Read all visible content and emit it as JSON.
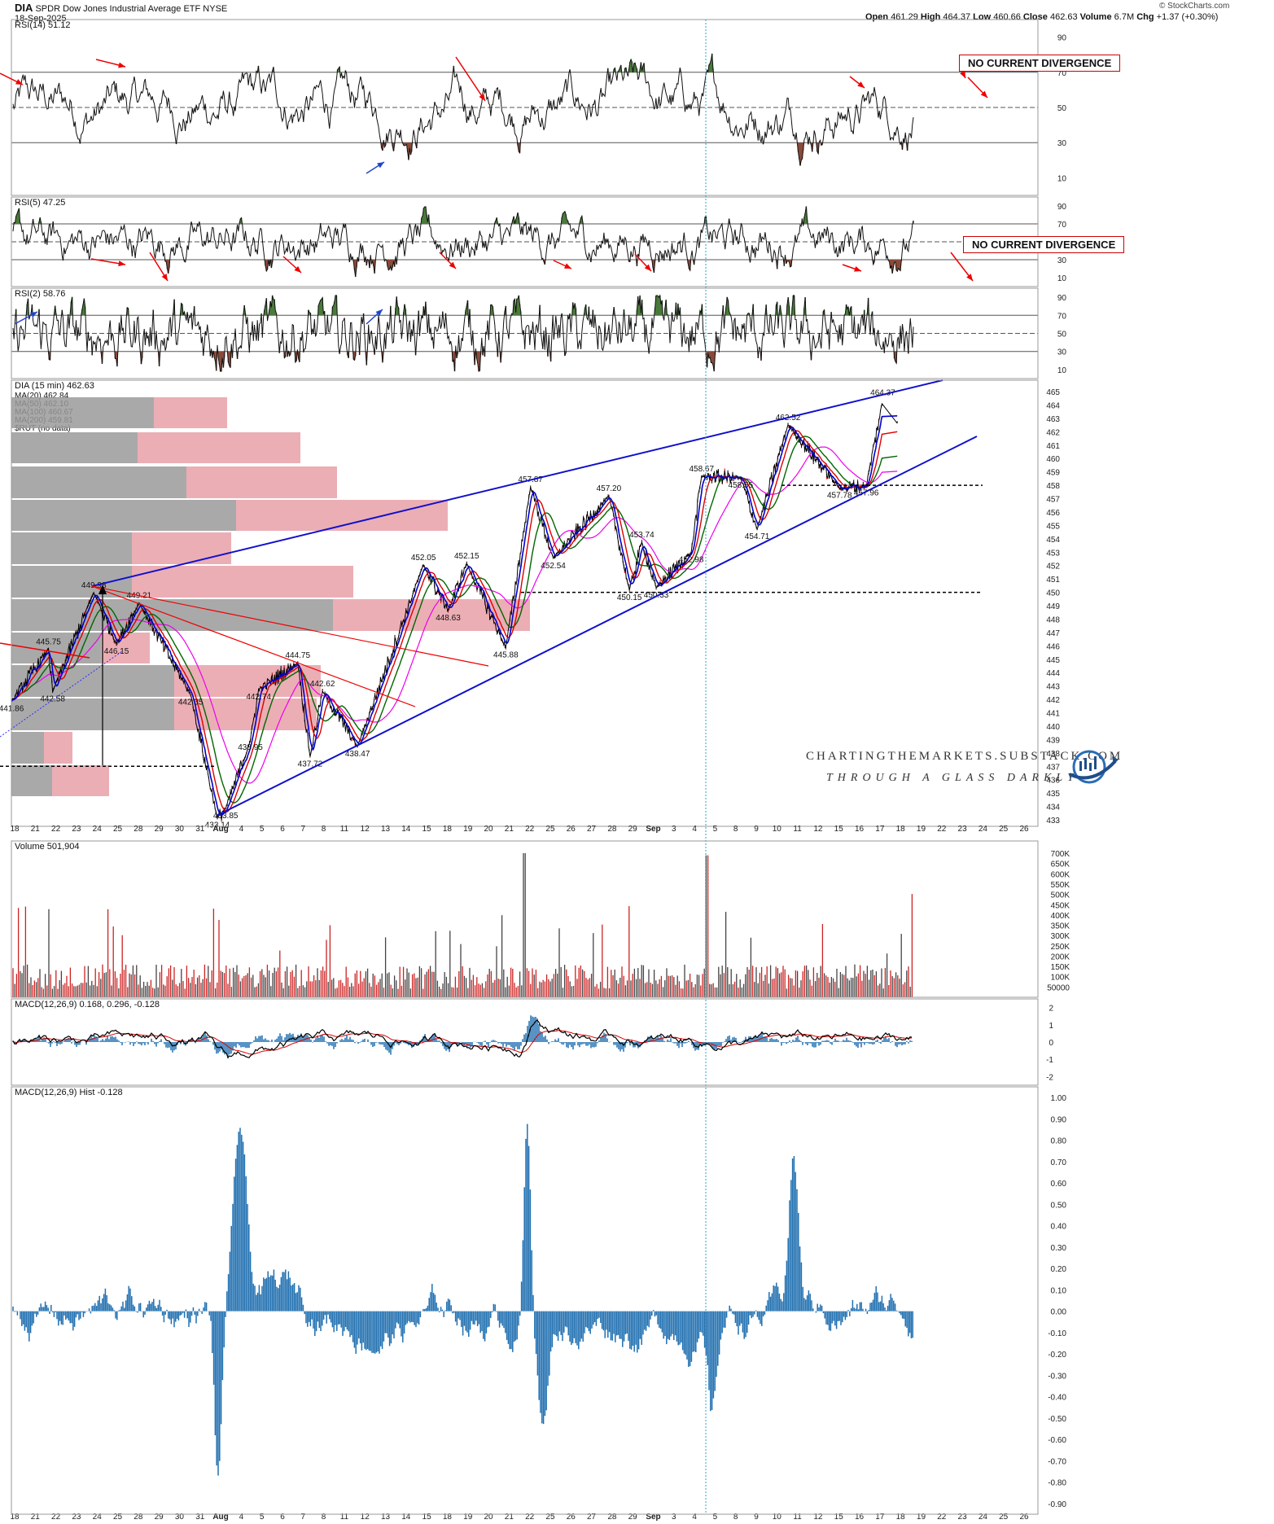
{
  "header": {
    "symbol": "DIA",
    "name": "SPDR Dow Jones Industrial Average ETF",
    "exchange": "NYSE",
    "date": "18-Sep-2025",
    "open_label": "Open",
    "open": "461.29",
    "high_label": "High",
    "high": "464.37",
    "low_label": "Low",
    "low": "460.66",
    "close_label": "Close",
    "close": "462.63",
    "volume_label": "Volume",
    "volume": "6.7M",
    "chg_label": "Chg",
    "chg": "+1.37 (+0.30%)",
    "copyright": "© StockCharts.com"
  },
  "watermark": {
    "line1": "CHARTINGTHEMARKETS.SUBSTACK.COM",
    "line2": "THROUGH A GLASS DARKLY"
  },
  "annotations": {
    "rsi14_divergence": "NO CURRENT DIVERGENCE",
    "rsi5_divergence": "NO CURRENT DIVERGENCE"
  },
  "chart_data": [
    {
      "type": "line",
      "title": "RSI(14) 51.12",
      "y_ticks": [
        90,
        70,
        50,
        30,
        10
      ],
      "ylim": [
        0,
        100
      ],
      "guides": [
        70,
        50,
        30
      ]
    },
    {
      "type": "line",
      "title": "RSI(5) 47.25",
      "y_ticks": [
        90,
        70,
        50,
        30,
        10
      ],
      "ylim": [
        0,
        100
      ],
      "guides": [
        70,
        50,
        30
      ]
    },
    {
      "type": "line",
      "title": "RSI(2) 58.76",
      "y_ticks": [
        90,
        70,
        50,
        30,
        10
      ],
      "ylim": [
        0,
        100
      ],
      "guides": [
        70,
        50,
        30
      ]
    },
    {
      "type": "line",
      "title": "DIA (15 min) 462.63",
      "legend": [
        {
          "name": "MA(20) 462.84",
          "color": "#0000cc"
        },
        {
          "name": "MA(50) 462.10",
          "color": "#dd0000"
        },
        {
          "name": "MA(100) 460.67",
          "color": "#006600"
        },
        {
          "name": "MA(200) 459.81",
          "color": "#ee00ee"
        },
        {
          "name": "$RUT (no data)",
          "color": "#00aa00"
        }
      ],
      "y_ticks": [
        465,
        464,
        463,
        462,
        461,
        460,
        459,
        458,
        457,
        456,
        455,
        454,
        453,
        452,
        451,
        450,
        449,
        448,
        447,
        446,
        445,
        444,
        443,
        442,
        441,
        440,
        439,
        438,
        437,
        436,
        435,
        434,
        433
      ],
      "ylim": [
        433,
        465
      ],
      "key_points": [
        {
          "x": 0.0,
          "y": 441.86,
          "label": "441.86"
        },
        {
          "x": 1.8,
          "y": 445.75,
          "label": "445.75"
        },
        {
          "x": 2.0,
          "y": 442.58,
          "label": "442.58"
        },
        {
          "x": 4.0,
          "y": 449.98,
          "label": "449.98"
        },
        {
          "x": 5.1,
          "y": 446.15,
          "label": "446.15"
        },
        {
          "x": 6.2,
          "y": 449.21,
          "label": "449.21"
        },
        {
          "x": 8.7,
          "y": 442.35,
          "label": "442.35"
        },
        {
          "x": 10.0,
          "y": 433.14,
          "label": "433.14"
        },
        {
          "x": 10.4,
          "y": 433.85,
          "label": "433.85"
        },
        {
          "x": 11.6,
          "y": 438.95,
          "label": "438.95"
        },
        {
          "x": 12.0,
          "y": 442.74,
          "label": "442.74"
        },
        {
          "x": 13.9,
          "y": 444.75,
          "label": "444.75"
        },
        {
          "x": 14.5,
          "y": 437.72,
          "label": "437.72"
        },
        {
          "x": 15.1,
          "y": 442.62,
          "label": "442.62"
        },
        {
          "x": 16.8,
          "y": 438.47,
          "label": "438.47"
        },
        {
          "x": 20.0,
          "y": 452.05,
          "label": "452.05"
        },
        {
          "x": 21.2,
          "y": 448.63,
          "label": "448.63"
        },
        {
          "x": 22.1,
          "y": 452.15,
          "label": "452.15"
        },
        {
          "x": 24.0,
          "y": 445.88,
          "label": "445.88"
        },
        {
          "x": 25.2,
          "y": 457.87,
          "label": "457.87"
        },
        {
          "x": 26.3,
          "y": 452.54,
          "label": "452.54"
        },
        {
          "x": 29.0,
          "y": 457.2,
          "label": "457.20"
        },
        {
          "x": 30.0,
          "y": 450.15,
          "label": "450.15"
        },
        {
          "x": 30.6,
          "y": 453.74,
          "label": "453.74"
        },
        {
          "x": 31.3,
          "y": 450.33,
          "label": "450.33"
        },
        {
          "x": 33.0,
          "y": 452.98,
          "label": "452.98"
        },
        {
          "x": 33.5,
          "y": 458.67,
          "label": "458.67"
        },
        {
          "x": 35.4,
          "y": 458.55,
          "label": "458.55"
        },
        {
          "x": 36.2,
          "y": 454.71,
          "label": "454.71"
        },
        {
          "x": 37.7,
          "y": 462.52,
          "label": "462.52"
        },
        {
          "x": 40.2,
          "y": 457.78,
          "label": "457.78"
        },
        {
          "x": 41.5,
          "y": 457.96,
          "label": "457.96"
        },
        {
          "x": 42.3,
          "y": 464.37,
          "label": "464.37"
        }
      ],
      "horizontal_levels": [
        458,
        450,
        437
      ]
    },
    {
      "type": "bar",
      "title": "Volume 501,904",
      "y_ticks": [
        "700K",
        "650K",
        "600K",
        "550K",
        "500K",
        "450K",
        "400K",
        "350K",
        "300K",
        "250K",
        "200K",
        "150K",
        "100K",
        "50000"
      ],
      "ylim": [
        0,
        720000
      ]
    },
    {
      "type": "line",
      "title": "MACD(12,26,9) 0.168, 0.296, -0.128",
      "y_ticks": [
        2,
        1,
        0,
        -1,
        -2
      ],
      "ylim": [
        -2.5,
        2.5
      ]
    },
    {
      "type": "bar",
      "title": "MACD(12,26,9) Hist -0.128",
      "y_ticks": [
        "1.00",
        "0.90",
        "0.80",
        "0.70",
        "0.60",
        "0.50",
        "0.40",
        "0.30",
        "0.20",
        "0.10",
        "0.00",
        "-0.10",
        "-0.20",
        "-0.30",
        "-0.40",
        "-0.50",
        "-0.60",
        "-0.70",
        "-0.80",
        "-0.90"
      ],
      "ylim": [
        -0.95,
        1.05
      ]
    }
  ],
  "x_axis_labels": [
    "18",
    "21",
    "22",
    "23",
    "24",
    "25",
    "28",
    "29",
    "30",
    "31",
    "Aug",
    "4",
    "5",
    "6",
    "7",
    "8",
    "11",
    "12",
    "13",
    "14",
    "15",
    "18",
    "19",
    "20",
    "21",
    "22",
    "25",
    "26",
    "27",
    "28",
    "29",
    "Sep",
    "3",
    "4",
    "5",
    "8",
    "9",
    "10",
    "11",
    "12",
    "15",
    "16",
    "17",
    "18",
    "19",
    "22",
    "23",
    "24",
    "25",
    "26"
  ]
}
